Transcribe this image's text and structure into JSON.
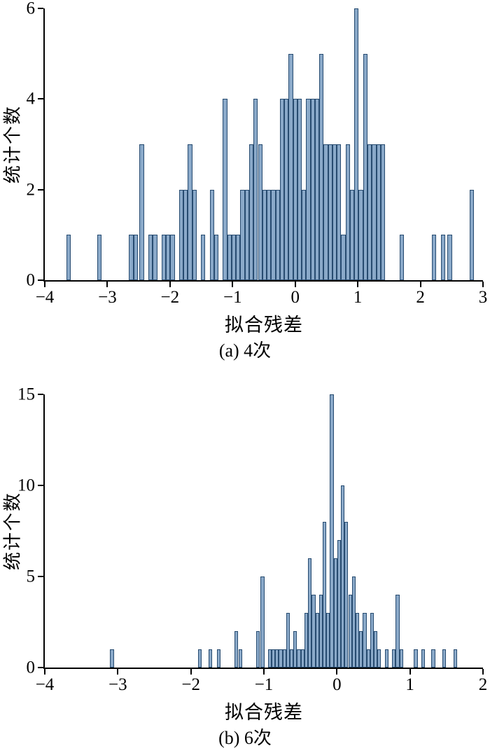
{
  "page": {
    "background": "#ffffff"
  },
  "chart_data": [
    {
      "type": "bar",
      "subtype": "histogram",
      "caption": "(a) 4次",
      "xlabel": "拟合残差",
      "ylabel": "统计个数",
      "xlim": [
        -4,
        3
      ],
      "ylim": [
        0,
        6
      ],
      "xticks": [
        -4,
        -3,
        -2,
        -1,
        0,
        1,
        2,
        3
      ],
      "yticks": [
        0,
        2,
        4,
        6
      ],
      "grid": false,
      "legend": false,
      "bin_width": 0.07,
      "bar_fill": "#8aa9c9",
      "bar_edge": "#274b70",
      "bins": [
        [
          -3.62,
          1
        ],
        [
          -3.13,
          1
        ],
        [
          -2.62,
          1
        ],
        [
          -2.55,
          1
        ],
        [
          -2.45,
          3
        ],
        [
          -2.31,
          1
        ],
        [
          -2.24,
          1
        ],
        [
          -2.1,
          1
        ],
        [
          -2.03,
          1
        ],
        [
          -1.96,
          1
        ],
        [
          -1.82,
          2
        ],
        [
          -1.75,
          2
        ],
        [
          -1.68,
          3
        ],
        [
          -1.61,
          2
        ],
        [
          -1.47,
          1
        ],
        [
          -1.33,
          2
        ],
        [
          -1.26,
          1
        ],
        [
          -1.12,
          4
        ],
        [
          -1.05,
          1
        ],
        [
          -0.98,
          1
        ],
        [
          -0.91,
          1
        ],
        [
          -0.84,
          2
        ],
        [
          -0.77,
          2
        ],
        [
          -0.7,
          3
        ],
        [
          -0.63,
          4
        ],
        [
          -0.56,
          3
        ],
        [
          -0.49,
          2
        ],
        [
          -0.42,
          2
        ],
        [
          -0.35,
          2
        ],
        [
          -0.28,
          2
        ],
        [
          -0.21,
          4
        ],
        [
          -0.14,
          4
        ],
        [
          -0.07,
          5
        ],
        [
          0.0,
          4
        ],
        [
          0.07,
          4
        ],
        [
          0.14,
          2
        ],
        [
          0.21,
          4
        ],
        [
          0.28,
          4
        ],
        [
          0.35,
          4
        ],
        [
          0.42,
          5
        ],
        [
          0.49,
          3
        ],
        [
          0.56,
          3
        ],
        [
          0.63,
          3
        ],
        [
          0.7,
          3
        ],
        [
          0.77,
          1
        ],
        [
          0.84,
          3
        ],
        [
          0.91,
          2
        ],
        [
          0.98,
          6
        ],
        [
          1.05,
          2
        ],
        [
          1.12,
          5
        ],
        [
          1.19,
          3
        ],
        [
          1.26,
          3
        ],
        [
          1.33,
          3
        ],
        [
          1.4,
          3
        ],
        [
          1.7,
          1
        ],
        [
          2.22,
          1
        ],
        [
          2.36,
          1
        ],
        [
          2.47,
          1
        ],
        [
          2.82,
          2
        ]
      ]
    },
    {
      "type": "bar",
      "subtype": "histogram",
      "caption": "(b) 6次",
      "xlabel": "拟合残差",
      "ylabel": "统计个数",
      "xlim": [
        -4,
        2
      ],
      "ylim": [
        0,
        15
      ],
      "xticks": [
        -4,
        -3,
        -2,
        -1,
        0,
        1,
        2
      ],
      "yticks": [
        0,
        5,
        10,
        15
      ],
      "grid": false,
      "legend": false,
      "bin_width": 0.05,
      "bar_fill": "#8aa9c9",
      "bar_edge": "#274b70",
      "bins": [
        [
          -3.08,
          1
        ],
        [
          -1.88,
          1
        ],
        [
          -1.73,
          1
        ],
        [
          -1.62,
          1
        ],
        [
          -1.38,
          2
        ],
        [
          -1.32,
          1
        ],
        [
          -1.08,
          2
        ],
        [
          -1.02,
          5
        ],
        [
          -0.92,
          1
        ],
        [
          -0.87,
          1
        ],
        [
          -0.82,
          1
        ],
        [
          -0.77,
          1
        ],
        [
          -0.72,
          1
        ],
        [
          -0.67,
          3
        ],
        [
          -0.62,
          1
        ],
        [
          -0.57,
          2
        ],
        [
          -0.52,
          1
        ],
        [
          -0.47,
          1
        ],
        [
          -0.42,
          3
        ],
        [
          -0.37,
          6
        ],
        [
          -0.32,
          4
        ],
        [
          -0.27,
          3
        ],
        [
          -0.22,
          4
        ],
        [
          -0.17,
          8
        ],
        [
          -0.12,
          3
        ],
        [
          -0.07,
          15
        ],
        [
          -0.02,
          6
        ],
        [
          0.03,
          7
        ],
        [
          0.08,
          10
        ],
        [
          0.13,
          8
        ],
        [
          0.18,
          4
        ],
        [
          0.23,
          5
        ],
        [
          0.28,
          3
        ],
        [
          0.33,
          2
        ],
        [
          0.38,
          3
        ],
        [
          0.43,
          1
        ],
        [
          0.48,
          3
        ],
        [
          0.53,
          2
        ],
        [
          0.58,
          1
        ],
        [
          0.68,
          1
        ],
        [
          0.78,
          1
        ],
        [
          0.83,
          4
        ],
        [
          0.88,
          1
        ],
        [
          1.08,
          1
        ],
        [
          1.18,
          1
        ],
        [
          1.32,
          1
        ],
        [
          1.47,
          1
        ],
        [
          1.62,
          1
        ]
      ]
    }
  ]
}
